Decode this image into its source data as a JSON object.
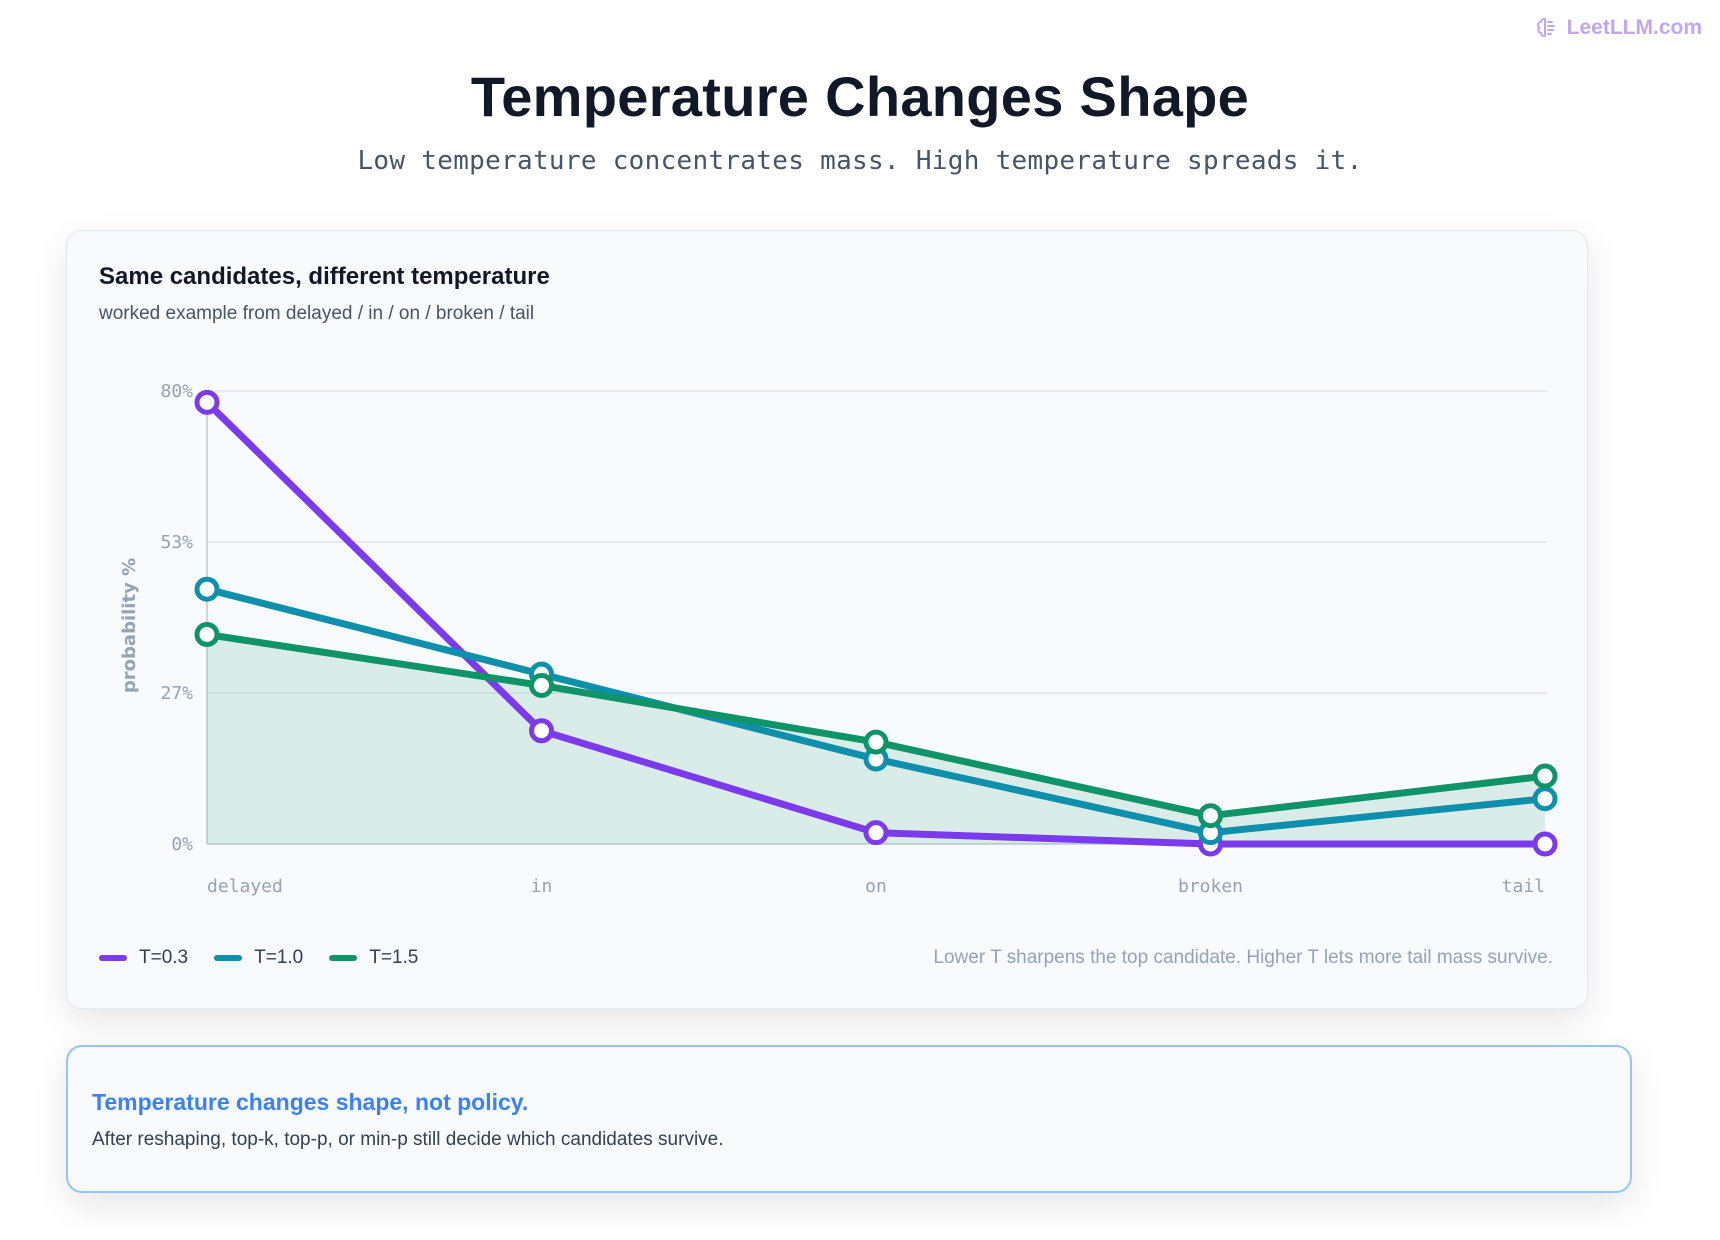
{
  "brand": {
    "text": "LeetLLM.com",
    "icon": "brain-icon"
  },
  "header": {
    "title": "Temperature Changes Shape",
    "subtitle": "Low temperature concentrates mass. High temperature spreads it."
  },
  "card": {
    "title": "Same candidates, different temperature",
    "subtitle": "worked example from delayed / in / on / broken / tail",
    "note": "Lower T sharpens the top candidate. Higher T lets more tail mass survive."
  },
  "chart_data": {
    "type": "line",
    "categories": [
      "delayed",
      "in",
      "on",
      "broken",
      "tail"
    ],
    "ylabel": "probability %",
    "yticks": [
      "0%",
      "27%",
      "53%",
      "80%"
    ],
    "ylim": [
      0,
      80
    ],
    "grid": true,
    "legend_position": "bottom-left",
    "filled_series": "T=1.5",
    "series": [
      {
        "name": "T=0.3",
        "color": "#7c3aed",
        "values": [
          78,
          20,
          2,
          0,
          0
        ]
      },
      {
        "name": "T=1.0",
        "color": "#0e8fab",
        "values": [
          45,
          30,
          15,
          2,
          8
        ]
      },
      {
        "name": "T=1.5",
        "color": "#0f9467",
        "values": [
          37,
          28,
          18,
          5,
          12
        ]
      }
    ]
  },
  "callout": {
    "title": "Temperature changes shape, not policy.",
    "text": "After reshaping, top-k, top-p, or min-p still decide which candidates survive."
  }
}
